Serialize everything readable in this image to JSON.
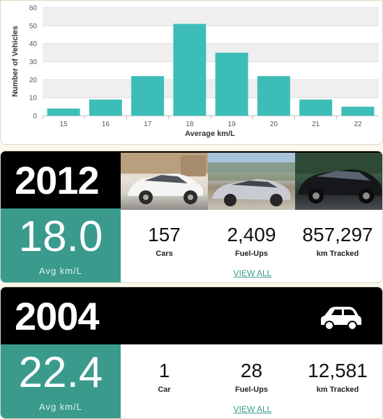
{
  "chart_data": {
    "type": "bar",
    "categories": [
      "15",
      "16",
      "17",
      "18",
      "19",
      "20",
      "21",
      "22"
    ],
    "values": [
      4,
      9,
      22,
      51,
      35,
      22,
      9,
      5
    ],
    "ylabel": "Number of Vehicles",
    "xlabel": "Average km/L",
    "ylim": [
      0,
      60
    ],
    "yticks": [
      "0",
      "10",
      "20",
      "30",
      "40",
      "50",
      "60"
    ],
    "grid": true,
    "bar_color": "#3dbdb8"
  },
  "cards": [
    {
      "year": "2012",
      "avg_value": "18.0",
      "avg_label": "Avg km/L",
      "stats": [
        {
          "value": "157",
          "label": "Cars"
        },
        {
          "value": "2,409",
          "label": "Fuel-Ups"
        },
        {
          "value": "857,297",
          "label": "km Tracked"
        }
      ],
      "view_all": "VIEW ALL"
    },
    {
      "year": "2004",
      "avg_value": "22.4",
      "avg_label": "Avg km/L",
      "stats": [
        {
          "value": "1",
          "label": "Car"
        },
        {
          "value": "28",
          "label": "Fuel-Ups"
        },
        {
          "value": "12,581",
          "label": "km Tracked"
        }
      ],
      "view_all": "VIEW ALL"
    }
  ],
  "colors": {
    "accent": "#3a9b8d",
    "header": "#000000"
  },
  "icons": {
    "placeholder_car": "car-icon"
  }
}
